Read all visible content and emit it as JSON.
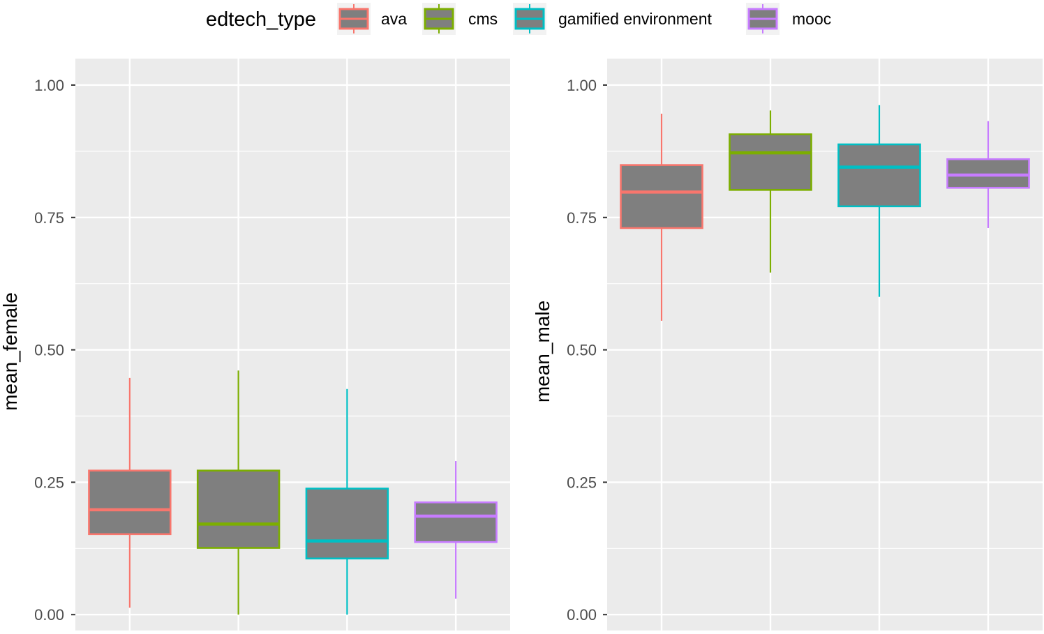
{
  "legend": {
    "title": "edtech_type",
    "position": "top",
    "items": [
      {
        "label": "ava",
        "color": "#F8766D"
      },
      {
        "label": "cms",
        "color": "#7CAE00"
      },
      {
        "label": "gamified environment",
        "color": "#00BFC4"
      },
      {
        "label": "mooc",
        "color": "#C77CFF"
      }
    ]
  },
  "colors": {
    "panel_bg": "#EBEBEB",
    "grid": "#FFFFFF",
    "box_fill": "#7F7F7F",
    "axis_text": "#4D4D4D",
    "title_text": "#000000"
  },
  "chart_data": [
    {
      "type": "boxplot",
      "ylabel": "mean_female",
      "xlabel": "",
      "ylim": [
        -0.03,
        1.05
      ],
      "yticks": [
        0.0,
        0.25,
        0.5,
        0.75,
        1.0
      ],
      "ytick_labels": [
        "0.00",
        "0.25",
        "0.50",
        "0.75",
        "1.00"
      ],
      "categories": [
        "ava",
        "cms",
        "gamified environment",
        "mooc"
      ],
      "boxes": [
        {
          "name": "ava",
          "lower_whisker": 0.013,
          "q1": 0.152,
          "median": 0.198,
          "q3": 0.272,
          "upper_whisker": 0.447
        },
        {
          "name": "cms",
          "lower_whisker": 0.0,
          "q1": 0.126,
          "median": 0.171,
          "q3": 0.272,
          "upper_whisker": 0.461
        },
        {
          "name": "gamified environment",
          "lower_whisker": 0.0,
          "q1": 0.106,
          "median": 0.139,
          "q3": 0.238,
          "upper_whisker": 0.426
        },
        {
          "name": "mooc",
          "lower_whisker": 0.03,
          "q1": 0.137,
          "median": 0.186,
          "q3": 0.212,
          "upper_whisker": 0.29
        }
      ]
    },
    {
      "type": "boxplot",
      "ylabel": "mean_male",
      "xlabel": "",
      "ylim": [
        -0.03,
        1.05
      ],
      "yticks": [
        0.0,
        0.25,
        0.5,
        0.75,
        1.0
      ],
      "ytick_labels": [
        "0.00",
        "0.25",
        "0.50",
        "0.75",
        "1.00"
      ],
      "categories": [
        "ava",
        "cms",
        "gamified environment",
        "mooc"
      ],
      "boxes": [
        {
          "name": "ava",
          "lower_whisker": 0.555,
          "q1": 0.73,
          "median": 0.798,
          "q3": 0.849,
          "upper_whisker": 0.946
        },
        {
          "name": "cms",
          "lower_whisker": 0.646,
          "q1": 0.802,
          "median": 0.872,
          "q3": 0.907,
          "upper_whisker": 0.952
        },
        {
          "name": "gamified environment",
          "lower_whisker": 0.6,
          "q1": 0.771,
          "median": 0.845,
          "q3": 0.888,
          "upper_whisker": 0.962
        },
        {
          "name": "mooc",
          "lower_whisker": 0.73,
          "q1": 0.806,
          "median": 0.83,
          "q3": 0.86,
          "upper_whisker": 0.932
        }
      ]
    }
  ]
}
